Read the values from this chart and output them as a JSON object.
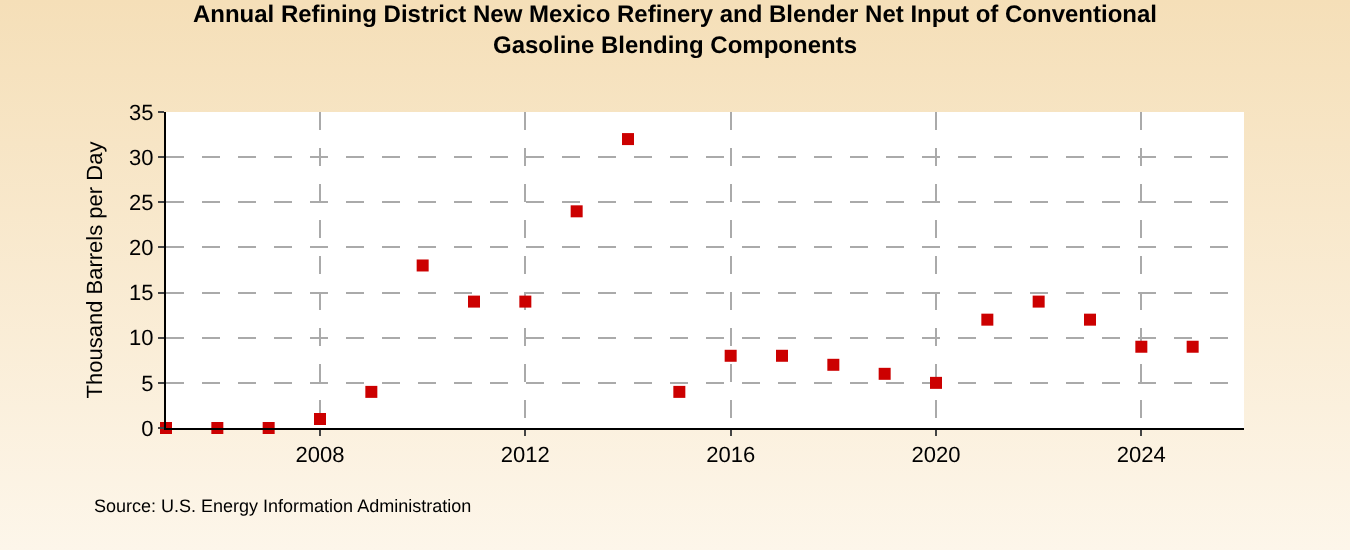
{
  "chart_data": {
    "type": "scatter",
    "title": "Annual Refining District New Mexico Refinery and Blender Net Input of Conventional Gasoline Blending Components",
    "ylabel": "Thousand Barrels per Day",
    "x": [
      2005,
      2006,
      2007,
      2008,
      2009,
      2010,
      2011,
      2012,
      2013,
      2014,
      2015,
      2016,
      2017,
      2018,
      2019,
      2020,
      2021,
      2022,
      2023,
      2024,
      2025
    ],
    "series": [
      {
        "color": "#cc0000",
        "values": [
          0,
          0,
          0,
          1,
          4,
          18,
          14,
          14,
          24,
          32,
          4,
          8,
          8,
          7,
          6,
          5,
          12,
          14,
          12,
          9,
          9
        ]
      }
    ],
    "xlim": [
      2005,
      2026
    ],
    "xticks": [
      2008,
      2012,
      2016,
      2020,
      2024
    ],
    "ylim": [
      0,
      35
    ],
    "yticks": [
      0,
      5,
      10,
      15,
      20,
      25,
      30,
      35
    ],
    "grid": true,
    "marker": "square",
    "annotations": [
      "Source: U.S. Energy Information Administration"
    ]
  }
}
